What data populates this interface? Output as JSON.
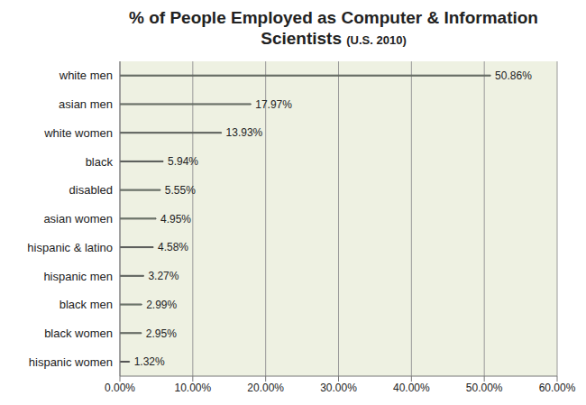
{
  "chart_data": {
    "type": "bar",
    "orientation": "horizontal",
    "title": "% of People Employed as Computer & Information Scientists",
    "subtitle": "(U.S. 2010)",
    "categories": [
      "white men",
      "asian men",
      "white women",
      "black",
      "disabled",
      "asian women",
      "hispanic & latino",
      "hispanic men",
      "black men",
      "black women",
      "hispanic women"
    ],
    "values": [
      50.86,
      17.97,
      13.93,
      5.94,
      5.55,
      4.95,
      4.58,
      3.27,
      2.99,
      2.95,
      1.32
    ],
    "value_labels": [
      "50.86%",
      "17.97%",
      "13.93%",
      "5.94%",
      "5.55%",
      "4.95%",
      "4.58%",
      "3.27%",
      "2.99%",
      "2.95%",
      "1.32%"
    ],
    "data_labels": true,
    "color": "#a6d9a0",
    "xlim": [
      0,
      60
    ],
    "xticks": [
      {
        "value": 0,
        "label": "0.00%"
      },
      {
        "value": 10,
        "label": "10.00%"
      },
      {
        "value": 20,
        "label": "20.00%"
      },
      {
        "value": 30,
        "label": "30.00%"
      },
      {
        "value": 40,
        "label": "40.00%"
      },
      {
        "value": 50,
        "label": "50.00%"
      },
      {
        "value": 60,
        "label": "60.00%"
      }
    ],
    "grid": true
  }
}
